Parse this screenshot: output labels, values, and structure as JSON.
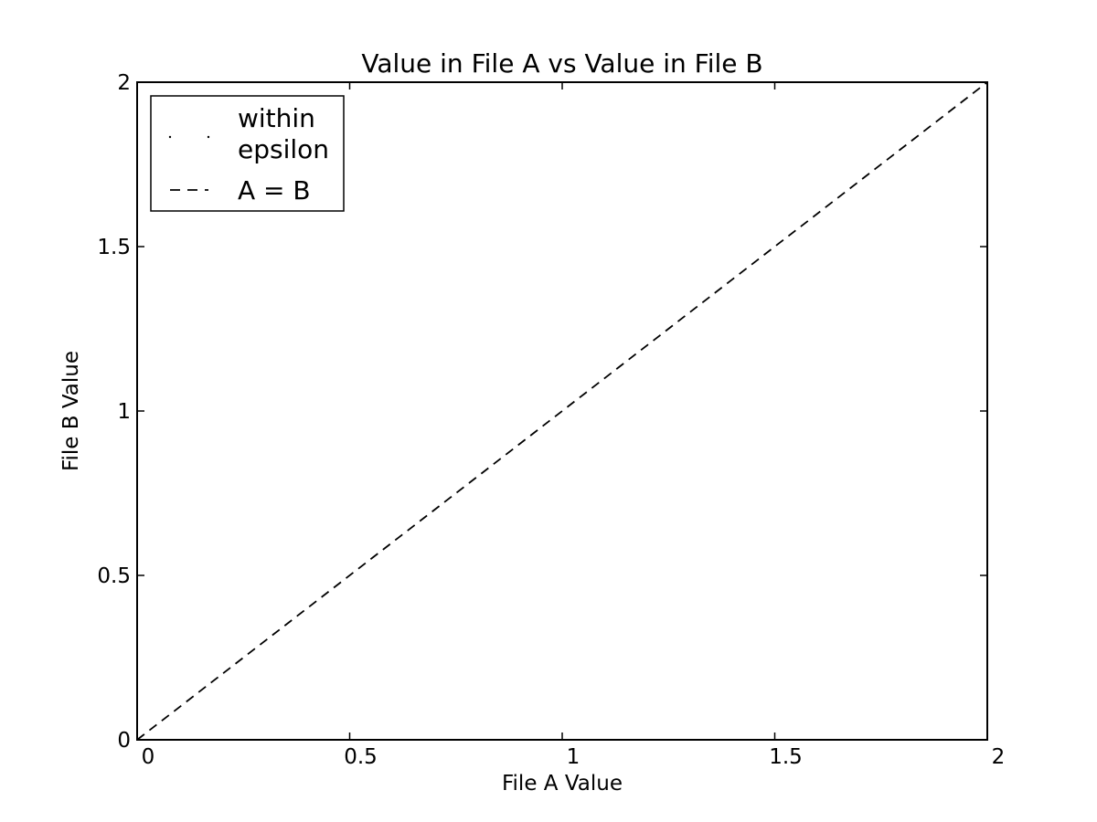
{
  "chart_data": {
    "type": "line",
    "title": "Value in File A vs Value in File B",
    "xlabel": "File A Value",
    "ylabel": "File B Value",
    "xlim": [
      0,
      2
    ],
    "ylim": [
      0,
      2
    ],
    "xticks": [
      {
        "value": 0,
        "label": "0"
      },
      {
        "value": 0.5,
        "label": "0.5"
      },
      {
        "value": 1,
        "label": "1"
      },
      {
        "value": 1.5,
        "label": "1.5"
      },
      {
        "value": 2,
        "label": "2"
      }
    ],
    "yticks": [
      {
        "value": 0,
        "label": "0"
      },
      {
        "value": 0.5,
        "label": "0.5"
      },
      {
        "value": 1,
        "label": "1"
      },
      {
        "value": 1.5,
        "label": "1.5"
      },
      {
        "value": 2,
        "label": "2"
      }
    ],
    "grid": false,
    "legend_position": "top-left",
    "legend": [
      {
        "label_lines": [
          "within",
          "epsilon"
        ],
        "style": "points",
        "color": "#000000"
      },
      {
        "label_lines": [
          "A = B"
        ],
        "style": "dashed",
        "color": "#000000"
      }
    ],
    "series": [
      {
        "name": "within epsilon",
        "style": "points",
        "x": [],
        "y": []
      },
      {
        "name": "A = B",
        "style": "dashed",
        "color": "#000000",
        "x": [
          0,
          2
        ],
        "y": [
          0,
          2
        ]
      }
    ]
  }
}
